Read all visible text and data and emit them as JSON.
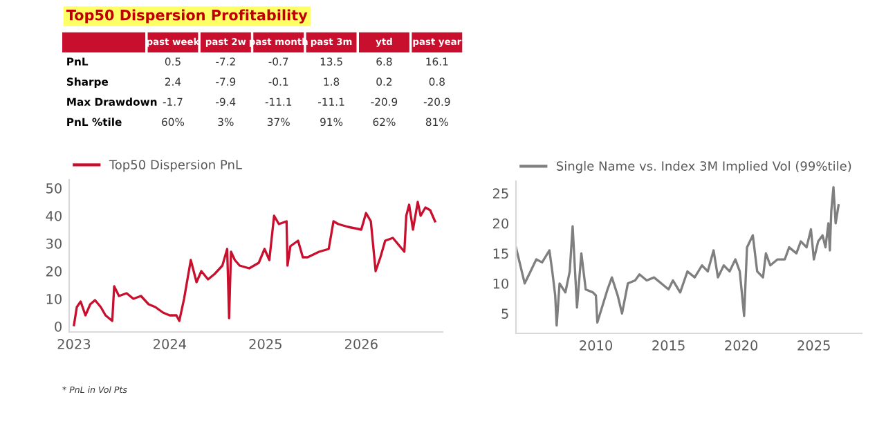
{
  "chart_data": [
    {
      "type": "other",
      "title": "Top50 Dispersion Profitability",
      "categories": [
        "past week",
        "past 2w",
        "past month",
        "past 3m",
        "ytd",
        "past year"
      ],
      "y_categories": [
        "PnL",
        "Sharpe",
        "Max Drawdown",
        "PnL %tile"
      ],
      "cell_labels": [
        [
          "0.5",
          "-7.2",
          "-0.7",
          "13.5",
          "6.8",
          "16.1"
        ],
        [
          "2.4",
          "-7.9",
          "-0.1",
          "1.8",
          "0.2",
          "0.8"
        ],
        [
          "-1.7",
          "-9.4",
          "-11.1",
          "-11.1",
          "-20.9",
          "-20.9"
        ],
        [
          "60%",
          "3%",
          "37%",
          "91%",
          "62%",
          "81%"
        ]
      ]
    },
    {
      "type": "line",
      "legend": "top left",
      "annotations": [
        "* PnL in Vol Pts"
      ],
      "xlim": [
        2022.95,
        2026.85
      ],
      "xticks": [
        2023,
        2024,
        2025,
        2026
      ],
      "ylim": [
        -2,
        53
      ],
      "yticks": [
        0,
        10,
        20,
        30,
        40,
        50
      ],
      "series": [
        {
          "name": "Top50 Dispersion PnL",
          "color": "#c8102e",
          "x": [
            2023.0,
            2023.03,
            2023.07,
            2023.12,
            2023.17,
            2023.22,
            2023.28,
            2023.33,
            2023.4,
            2023.42,
            2023.47,
            2023.55,
            2023.62,
            2023.7,
            2023.78,
            2023.85,
            2023.93,
            2024.0,
            2024.07,
            2024.1,
            2024.15,
            2024.22,
            2024.28,
            2024.33,
            2024.4,
            2024.47,
            2024.55,
            2024.6,
            2024.62,
            2024.64,
            2024.68,
            2024.73,
            2024.83,
            2024.93,
            2024.99,
            2025.04,
            2025.09,
            2025.14,
            2025.22,
            2025.23,
            2025.26,
            2025.34,
            2025.39,
            2025.44,
            2025.56,
            2025.66,
            2025.71,
            2025.76,
            2025.86,
            2026.0,
            2026.05,
            2026.1,
            2026.15,
            2026.2,
            2026.25,
            2026.33,
            2026.45,
            2026.47,
            2026.5,
            2026.54,
            2026.59,
            2026.62,
            2026.67,
            2026.72,
            2026.77
          ],
          "values": [
            0.5,
            7,
            9,
            4,
            8,
            9.5,
            7,
            4,
            2,
            14.5,
            11,
            12,
            10,
            11,
            8,
            7,
            5,
            4,
            4,
            2,
            10,
            24,
            16,
            20,
            17,
            19,
            22,
            28,
            3,
            27,
            24,
            22,
            21,
            23,
            28,
            24,
            40,
            37,
            38,
            22,
            29,
            31,
            25,
            25,
            27,
            28,
            38,
            37,
            36,
            35,
            41,
            38,
            20,
            25,
            31,
            32,
            27,
            40,
            44,
            35,
            45,
            40,
            43,
            42,
            38
          ]
        }
      ]
    },
    {
      "type": "line",
      "legend": "top left",
      "xlim": [
        2004.5,
        2028.3
      ],
      "xticks": [
        2010,
        2015,
        2020,
        2025
      ],
      "ylim": [
        1.7,
        27
      ],
      "yticks": [
        5,
        10,
        15,
        20,
        25
      ],
      "series": [
        {
          "name": "Single Name vs. Index 3M Implied Vol (99%tile)",
          "color": "#7f7f7f",
          "x": [
            2004.5,
            2004.8,
            2005.1,
            2005.5,
            2005.9,
            2006.3,
            2006.8,
            2007.0,
            2007.2,
            2007.3,
            2007.5,
            2007.9,
            2008.2,
            2008.4,
            2008.7,
            2009.0,
            2009.3,
            2009.8,
            2010.0,
            2010.1,
            2010.8,
            2011.1,
            2011.5,
            2011.8,
            2012.2,
            2012.7,
            2013.0,
            2013.5,
            2014.0,
            2014.5,
            2015.0,
            2015.3,
            2015.8,
            2016.3,
            2016.8,
            2017.3,
            2017.7,
            2018.1,
            2018.4,
            2018.8,
            2019.2,
            2019.6,
            2019.9,
            2020.2,
            2020.4,
            2020.8,
            2021.1,
            2021.5,
            2021.7,
            2022.0,
            2022.5,
            2023.0,
            2023.3,
            2023.8,
            2024.1,
            2024.5,
            2024.8,
            2025.0,
            2025.3,
            2025.6,
            2025.8,
            2026.0,
            2026.1,
            2026.2,
            2026.35,
            2026.5,
            2026.7
          ],
          "values": [
            16,
            13,
            10,
            12,
            14,
            13.5,
            15.5,
            12,
            8,
            3,
            10,
            8.5,
            12,
            19.5,
            6,
            15,
            9,
            8.5,
            8,
            3.5,
            9,
            11,
            8,
            5,
            10,
            10.5,
            11.5,
            10.5,
            11,
            10,
            9,
            10.5,
            8.5,
            12,
            11,
            13,
            12,
            15.5,
            11,
            13,
            12,
            14,
            12,
            4.6,
            16,
            18,
            12,
            11,
            15,
            13,
            14,
            14,
            16,
            15,
            17,
            16,
            19,
            14,
            17,
            18,
            16,
            20,
            15.5,
            22,
            26,
            20,
            23
          ]
        }
      ]
    }
  ]
}
